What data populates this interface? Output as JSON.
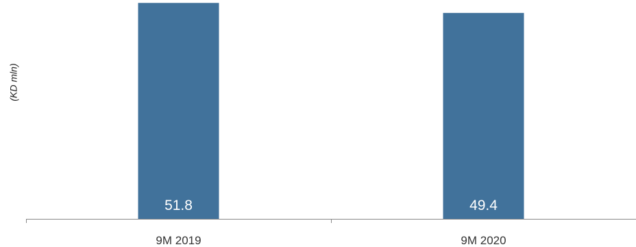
{
  "chart_data": {
    "type": "bar",
    "categories": [
      "9M 2019",
      "9M 2020"
    ],
    "values": [
      51.8,
      49.4
    ],
    "value_labels": [
      "51.8",
      "49.4"
    ],
    "title": "",
    "xlabel": "",
    "ylabel": "(KD mln)",
    "ylim": [
      0,
      52.5
    ],
    "grid": false,
    "bar_color": "#41729b",
    "label_color": "#ffffff",
    "axis_color": "#888888",
    "tick_label_color": "#333333"
  }
}
